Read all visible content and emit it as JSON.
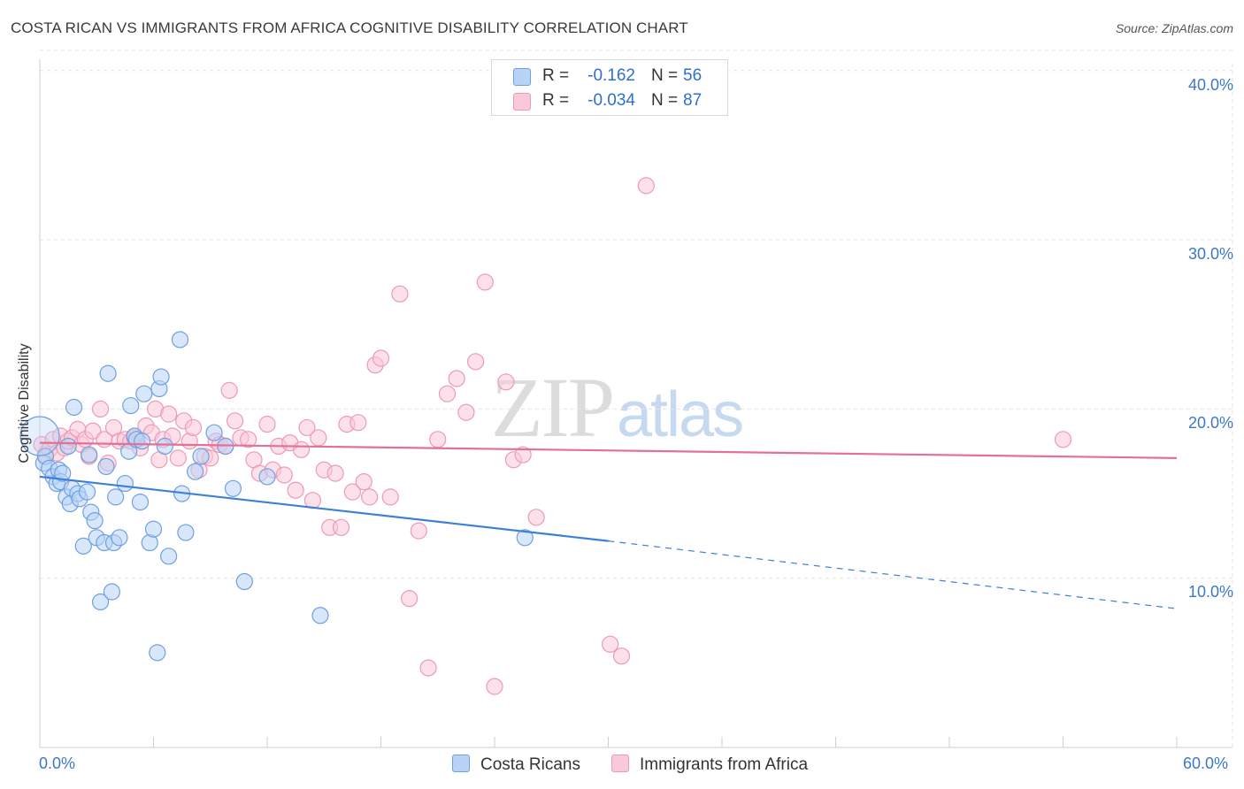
{
  "title": "COSTA RICAN VS IMMIGRANTS FROM AFRICA COGNITIVE DISABILITY CORRELATION CHART",
  "source": "Source: ZipAtlas.com",
  "watermark": {
    "zip": "ZIP",
    "atlas": "atlas"
  },
  "colors": {
    "blue": "#3c7fd8",
    "blue_fill": "#b8d3f5",
    "blue_stroke": "#6fa0e0",
    "pink": "#e46f98",
    "pink_fill": "#f9c9d8",
    "pink_stroke": "#ec9ab6",
    "grid": "#e3e3e3",
    "tick_label": "#3b78c8"
  },
  "legend": {
    "rows": [
      {
        "r_label": "R =",
        "r_value": "-0.162",
        "n_label": "N =",
        "n_value": "56"
      },
      {
        "r_label": "R =",
        "r_value": "-0.034",
        "n_label": "N =",
        "n_value": "87"
      }
    ]
  },
  "chart_data": {
    "type": "scatter",
    "title": "COSTA RICAN VS IMMIGRANTS FROM AFRICA COGNITIVE DISABILITY CORRELATION CHART",
    "xlabel": "",
    "ylabel": "Cognitive Disability",
    "xlim": [
      0,
      60
    ],
    "ylim": [
      0,
      42
    ],
    "x_tick_labels": [
      "0.0%",
      "60.0%"
    ],
    "y_ticks": [
      10,
      20,
      30,
      40
    ],
    "y_tick_labels": [
      "10.0%",
      "20.0%",
      "30.0%",
      "40.0%"
    ],
    "grid": true,
    "legend_position": "top-center",
    "series": [
      {
        "name": "Costa Ricans",
        "color": "#3c7fd8",
        "r": -0.162,
        "n": 56,
        "trend": {
          "x0": 0,
          "y0": 16.0,
          "x1": 30,
          "y1": 12.2,
          "dashed_to_x": 60,
          "dashed_to_y": 8.2
        },
        "points": [
          [
            0.2,
            16.8
          ],
          [
            0.3,
            17.2
          ],
          [
            0.5,
            16.5
          ],
          [
            0.7,
            16.0
          ],
          [
            0.9,
            15.6
          ],
          [
            1.0,
            16.4
          ],
          [
            1.1,
            15.7
          ],
          [
            1.2,
            16.2
          ],
          [
            1.4,
            14.8
          ],
          [
            1.6,
            14.4
          ],
          [
            1.7,
            15.3
          ],
          [
            1.8,
            20.1
          ],
          [
            2.0,
            15.0
          ],
          [
            2.1,
            14.7
          ],
          [
            2.3,
            11.9
          ],
          [
            2.5,
            15.1
          ],
          [
            2.6,
            17.3
          ],
          [
            2.7,
            13.9
          ],
          [
            2.9,
            13.4
          ],
          [
            3.0,
            12.4
          ],
          [
            3.2,
            8.6
          ],
          [
            3.4,
            12.1
          ],
          [
            3.5,
            16.6
          ],
          [
            3.6,
            22.1
          ],
          [
            3.8,
            9.2
          ],
          [
            3.9,
            12.1
          ],
          [
            4.0,
            14.8
          ],
          [
            4.2,
            12.4
          ],
          [
            4.5,
            15.6
          ],
          [
            4.7,
            17.5
          ],
          [
            4.8,
            20.2
          ],
          [
            5.0,
            18.4
          ],
          [
            5.1,
            18.2
          ],
          [
            5.3,
            14.5
          ],
          [
            5.4,
            18.1
          ],
          [
            5.5,
            20.9
          ],
          [
            5.8,
            12.1
          ],
          [
            6.0,
            12.9
          ],
          [
            6.2,
            5.6
          ],
          [
            6.3,
            21.2
          ],
          [
            6.4,
            21.9
          ],
          [
            6.6,
            17.8
          ],
          [
            6.8,
            11.3
          ],
          [
            7.4,
            24.1
          ],
          [
            7.5,
            15.0
          ],
          [
            7.7,
            12.7
          ],
          [
            8.2,
            16.3
          ],
          [
            8.5,
            17.2
          ],
          [
            9.2,
            18.6
          ],
          [
            9.8,
            17.8
          ],
          [
            10.2,
            15.3
          ],
          [
            10.8,
            9.8
          ],
          [
            12.0,
            16.0
          ],
          [
            14.8,
            7.8
          ],
          [
            25.6,
            12.4
          ],
          [
            1.5,
            17.8
          ]
        ]
      },
      {
        "name": "Immigrants from Africa",
        "color": "#e46f98",
        "r": -0.034,
        "n": 87,
        "trend": {
          "x0": 0,
          "y0": 18.0,
          "x1": 60,
          "y1": 17.1
        },
        "points": [
          [
            0.1,
            17.9
          ],
          [
            0.3,
            17.3
          ],
          [
            0.5,
            17.6
          ],
          [
            0.7,
            18.2
          ],
          [
            0.9,
            17.4
          ],
          [
            1.1,
            18.4
          ],
          [
            1.3,
            17.7
          ],
          [
            1.5,
            18.1
          ],
          [
            1.7,
            18.3
          ],
          [
            2.0,
            18.8
          ],
          [
            2.2,
            17.9
          ],
          [
            2.4,
            18.2
          ],
          [
            2.6,
            17.2
          ],
          [
            2.8,
            18.7
          ],
          [
            3.2,
            20.0
          ],
          [
            3.4,
            18.2
          ],
          [
            3.6,
            16.8
          ],
          [
            3.9,
            18.9
          ],
          [
            4.2,
            18.1
          ],
          [
            4.5,
            18.2
          ],
          [
            4.8,
            18.1
          ],
          [
            5.0,
            18.3
          ],
          [
            5.3,
            17.7
          ],
          [
            5.6,
            19.0
          ],
          [
            5.9,
            18.6
          ],
          [
            6.1,
            20.0
          ],
          [
            6.3,
            17.0
          ],
          [
            6.5,
            18.2
          ],
          [
            6.8,
            19.7
          ],
          [
            7.0,
            18.4
          ],
          [
            7.3,
            17.1
          ],
          [
            7.6,
            19.3
          ],
          [
            7.9,
            18.1
          ],
          [
            8.1,
            18.9
          ],
          [
            8.4,
            16.4
          ],
          [
            8.7,
            17.2
          ],
          [
            9.0,
            17.1
          ],
          [
            9.3,
            18.1
          ],
          [
            9.5,
            17.9
          ],
          [
            9.8,
            17.8
          ],
          [
            10.0,
            21.1
          ],
          [
            10.3,
            19.3
          ],
          [
            10.6,
            18.3
          ],
          [
            11.0,
            18.2
          ],
          [
            11.3,
            17.0
          ],
          [
            11.6,
            16.2
          ],
          [
            12.0,
            19.1
          ],
          [
            12.3,
            16.4
          ],
          [
            12.6,
            17.8
          ],
          [
            12.9,
            16.1
          ],
          [
            13.2,
            18.0
          ],
          [
            13.5,
            15.2
          ],
          [
            13.8,
            17.6
          ],
          [
            14.1,
            18.9
          ],
          [
            14.4,
            14.6
          ],
          [
            14.7,
            18.3
          ],
          [
            15.0,
            16.4
          ],
          [
            15.3,
            13.0
          ],
          [
            15.6,
            16.2
          ],
          [
            15.9,
            13.0
          ],
          [
            16.2,
            19.1
          ],
          [
            16.5,
            15.1
          ],
          [
            16.8,
            19.2
          ],
          [
            17.1,
            15.7
          ],
          [
            17.4,
            14.8
          ],
          [
            17.7,
            22.6
          ],
          [
            18.0,
            23.0
          ],
          [
            18.5,
            14.8
          ],
          [
            19.0,
            26.8
          ],
          [
            19.5,
            8.8
          ],
          [
            20.0,
            12.8
          ],
          [
            20.5,
            4.7
          ],
          [
            21.0,
            18.2
          ],
          [
            21.5,
            20.9
          ],
          [
            22.0,
            21.8
          ],
          [
            22.5,
            19.8
          ],
          [
            23.0,
            22.8
          ],
          [
            23.5,
            27.5
          ],
          [
            24.0,
            3.6
          ],
          [
            24.6,
            21.6
          ],
          [
            25.0,
            17.0
          ],
          [
            25.5,
            17.3
          ],
          [
            26.2,
            13.6
          ],
          [
            30.1,
            6.1
          ],
          [
            30.7,
            5.4
          ],
          [
            32.0,
            33.2
          ],
          [
            54.0,
            18.2
          ]
        ]
      }
    ]
  },
  "bottom_legend": [
    {
      "label": "Costa Ricans"
    },
    {
      "label": "Immigrants from Africa"
    }
  ]
}
